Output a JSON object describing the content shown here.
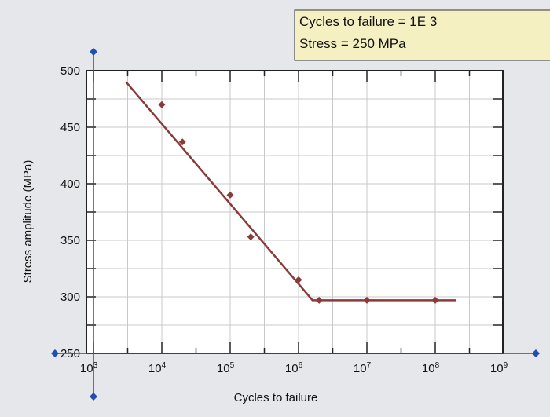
{
  "readout": {
    "line1": "Cycles to failure = 1E 3",
    "line2": "Stress = 250 MPa"
  },
  "colors": {
    "background": "#e6e7ea",
    "plot_background": "#ffffff",
    "grid": "#c9c9c9",
    "series": "#8b3a3a",
    "handle": "#1f4fb5",
    "readout_background": "#f4f0c2"
  },
  "chart_data": {
    "type": "line",
    "title": "",
    "xlabel": "Cycles to failure",
    "ylabel": "Stress amplitude (MPa)",
    "xscale": "log",
    "xlim": [
      1000,
      1000000000
    ],
    "ylim": [
      250,
      500
    ],
    "grid": true,
    "xticks": [
      {
        "value": 1000,
        "exp": "3"
      },
      {
        "value": 10000,
        "exp": "4"
      },
      {
        "value": 100000,
        "exp": "5"
      },
      {
        "value": 1000000,
        "exp": "6"
      },
      {
        "value": 10000000,
        "exp": "7"
      },
      {
        "value": 100000000,
        "exp": "8"
      },
      {
        "value": 1000000000,
        "exp": "9"
      }
    ],
    "yticks": [
      250,
      300,
      350,
      400,
      450,
      500
    ],
    "series": [
      {
        "line": [
          [
            3000,
            490
          ],
          [
            1600000,
            297
          ],
          [
            200000000,
            297
          ]
        ],
        "points": [
          [
            10000,
            470
          ],
          [
            20000,
            437
          ],
          [
            100000,
            390
          ],
          [
            200000,
            353
          ],
          [
            1000000,
            315
          ],
          [
            2000000,
            297
          ],
          [
            10000000,
            297
          ],
          [
            100000000,
            297
          ]
        ]
      }
    ]
  }
}
